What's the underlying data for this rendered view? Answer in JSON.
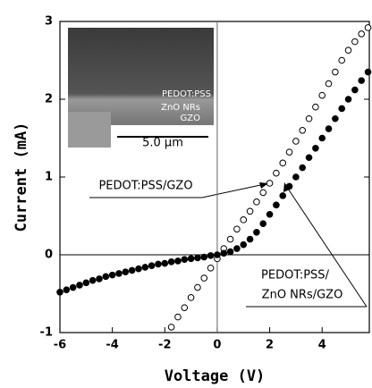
{
  "chart_data": {
    "type": "scatter",
    "xlabel": "Voltage (V)",
    "ylabel": "Current (mA)",
    "xlim": [
      -6,
      5.8
    ],
    "ylim": [
      -1,
      3
    ],
    "xticks": [
      -6,
      -4,
      -2,
      0,
      2,
      4
    ],
    "yticks": [
      -1,
      0,
      1,
      2,
      3
    ],
    "series": [
      {
        "marker": "open",
        "color": "#000000",
        "x": [
          -1.75,
          -1.5,
          -1.25,
          -1,
          -0.75,
          -0.5,
          -0.25,
          0,
          0.25,
          0.5,
          0.75,
          1,
          1.25,
          1.5,
          1.75,
          2,
          2.25,
          2.5,
          2.75,
          3,
          3.25,
          3.5,
          3.75,
          4,
          4.25,
          4.5,
          4.75,
          5,
          5.25,
          5.5,
          5.75
        ],
        "values": [
          -0.93,
          -0.8,
          -0.68,
          -0.55,
          -0.42,
          -0.3,
          -0.17,
          -0.05,
          0.08,
          0.2,
          0.33,
          0.45,
          0.56,
          0.68,
          0.8,
          0.92,
          1.05,
          1.18,
          1.32,
          1.46,
          1.6,
          1.75,
          1.9,
          2.05,
          2.2,
          2.35,
          2.5,
          2.63,
          2.74,
          2.84,
          2.92
        ]
      },
      {
        "marker": "filled",
        "color": "#000000",
        "x": [
          -6,
          -5.75,
          -5.5,
          -5.25,
          -5,
          -4.75,
          -4.5,
          -4.25,
          -4,
          -3.75,
          -3.5,
          -3.25,
          -3,
          -2.75,
          -2.5,
          -2.25,
          -2,
          -1.75,
          -1.5,
          -1.25,
          -1,
          -0.75,
          -0.5,
          -0.25,
          0,
          0.25,
          0.5,
          0.75,
          1,
          1.25,
          1.5,
          1.75,
          2,
          2.25,
          2.5,
          2.75,
          3,
          3.25,
          3.5,
          3.75,
          4,
          4.25,
          4.5,
          4.75,
          5,
          5.25,
          5.5,
          5.75
        ],
        "values": [
          -0.48,
          -0.45,
          -0.42,
          -0.39,
          -0.36,
          -0.33,
          -0.31,
          -0.28,
          -0.26,
          -0.24,
          -0.22,
          -0.2,
          -0.18,
          -0.16,
          -0.14,
          -0.12,
          -0.11,
          -0.09,
          -0.08,
          -0.06,
          -0.05,
          -0.04,
          -0.03,
          -0.01,
          0,
          0.02,
          0.04,
          0.08,
          0.13,
          0.2,
          0.29,
          0.4,
          0.52,
          0.64,
          0.76,
          0.88,
          1.0,
          1.12,
          1.25,
          1.37,
          1.5,
          1.62,
          1.75,
          1.88,
          2.0,
          2.12,
          2.24,
          2.35
        ]
      }
    ],
    "annotations": [
      {
        "lines": [
          "PEDOT:PSS/GZO"
        ]
      },
      {
        "lines": [
          "PEDOT:PSS/",
          "ZnO NRs/GZO"
        ]
      }
    ],
    "inset": {
      "labels": [
        "PEDOT:PSS",
        "ZnO NRs",
        "GZO"
      ],
      "scale_bar": "5.0 μm"
    }
  }
}
